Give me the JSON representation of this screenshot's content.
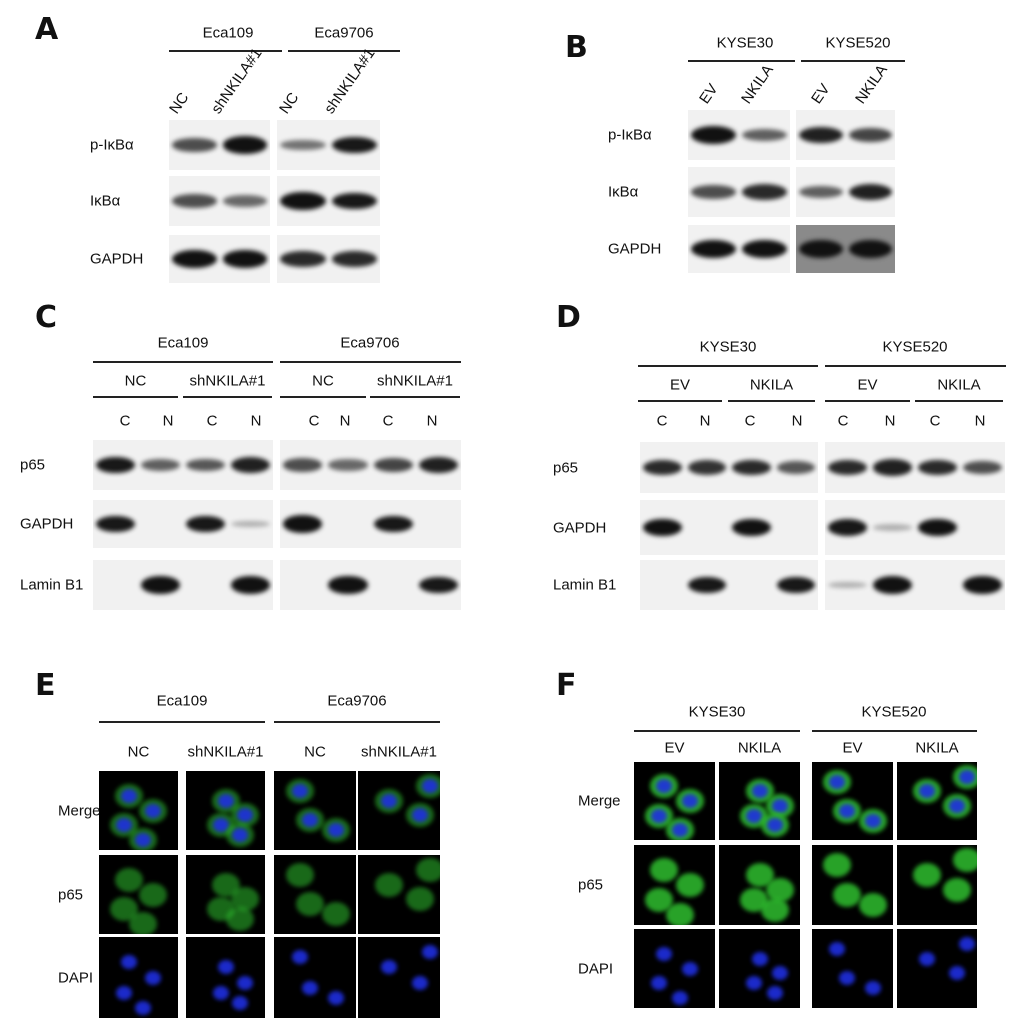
{
  "panels": {
    "A": {
      "label": "A",
      "groups": [
        "Eca109",
        "Eca9706"
      ],
      "lanes": [
        "NC",
        "shNKILA#1",
        "NC",
        "shNKILA#1"
      ],
      "rows": [
        {
          "name": "p-IκBα",
          "bands": [
            [
              0.6,
              0.95
            ],
            [
              0.4,
              0.9
            ]
          ]
        },
        {
          "name": "IκBα",
          "bands": [
            [
              0.6,
              0.45
            ],
            [
              1,
              0.9
            ]
          ]
        },
        {
          "name": "GAPDH",
          "bands": [
            [
              1,
              0.95
            ],
            [
              0.8,
              0.8
            ]
          ]
        }
      ]
    },
    "B": {
      "label": "B",
      "groups": [
        "KYSE30",
        "KYSE520"
      ],
      "lanes": [
        "EV",
        "NKILA",
        "EV",
        "NKILA"
      ],
      "rows": [
        {
          "name": "p-IκBα",
          "bands": [
            [
              1,
              0.5
            ],
            [
              0.85,
              0.65
            ]
          ]
        },
        {
          "name": "IκBα",
          "bands": [
            [
              0.6,
              0.8
            ],
            [
              0.5,
              0.85
            ]
          ]
        },
        {
          "name": "GAPDH",
          "bands": [
            [
              1,
              1
            ],
            [
              1,
              1
            ]
          ]
        }
      ]
    },
    "C": {
      "label": "C",
      "groups": [
        "Eca109",
        "Eca9706"
      ],
      "subgroups": [
        "NC",
        "shNKILA#1",
        "NC",
        "shNKILA#1"
      ],
      "lanes": [
        "C",
        "N",
        "C",
        "N",
        "C",
        "N",
        "C",
        "N"
      ],
      "rows": [
        {
          "name": "p65",
          "bands": [
            [
              0.9,
              0.5,
              0.55,
              0.85
            ],
            [
              0.6,
              0.45,
              0.65,
              0.85
            ]
          ]
        },
        {
          "name": "GAPDH",
          "bands": [
            [
              0.9,
              0,
              0.9,
              0.05
            ],
            [
              0.95,
              0,
              0.9,
              0
            ]
          ]
        },
        {
          "name": "Lamin B1",
          "bands": [
            [
              0,
              0.95,
              0,
              0.95
            ],
            [
              0,
              0.95,
              0,
              0.9
            ]
          ]
        }
      ]
    },
    "D": {
      "label": "D",
      "groups": [
        "KYSE30",
        "KYSE520"
      ],
      "subgroups": [
        "EV",
        "NKILA",
        "EV",
        "NKILA"
      ],
      "lanes": [
        "C",
        "N",
        "C",
        "N",
        "C",
        "N",
        "C",
        "N"
      ],
      "rows": [
        {
          "name": "p65",
          "bands": [
            [
              0.8,
              0.75,
              0.8,
              0.55
            ],
            [
              0.8,
              0.85,
              0.8,
              0.6
            ]
          ]
        },
        {
          "name": "GAPDH",
          "bands": [
            [
              0.95,
              0,
              0.95,
              0
            ],
            [
              0.9,
              0.05,
              0.95,
              0
            ]
          ]
        },
        {
          "name": "Lamin B1",
          "bands": [
            [
              0,
              0.9,
              0,
              0.9
            ],
            [
              0.05,
              1,
              0,
              0.95
            ]
          ]
        }
      ]
    },
    "E": {
      "label": "E",
      "groups": [
        "Eca109",
        "Eca9706"
      ],
      "lanes": [
        "NC",
        "shNKILA#1",
        "NC",
        "shNKILA#1"
      ],
      "rows": [
        "Merge",
        "p65",
        "DAPI"
      ]
    },
    "F": {
      "label": "F",
      "groups": [
        "KYSE30",
        "KYSE520"
      ],
      "lanes": [
        "EV",
        "NKILA",
        "EV",
        "NKILA"
      ],
      "rows": [
        "Merge",
        "p65",
        "DAPI"
      ]
    }
  },
  "colors": {
    "blot_bg": "#f1f1f1",
    "band": "#111111",
    "gapdh_gray_bg": "#8a8a8a",
    "p65_green": "#2fbf2f",
    "dapi_blue": "#1f2fe0"
  }
}
